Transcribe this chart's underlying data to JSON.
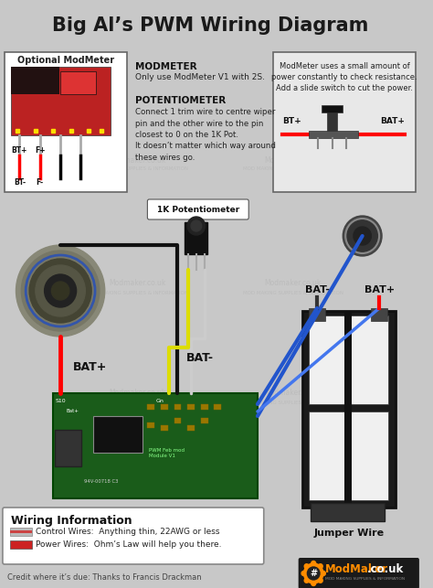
{
  "title": "Big Al’s PWM Wiring Diagram",
  "bg_color": "#c8c8c8",
  "title_color": "#1a1a1a",
  "title_fontsize": 15,
  "subtitle_credit": "Credit where it’s due: Thanks to Francis Drackman",
  "wiring_info_title": "Wiring Information",
  "wiring_info_line1": "Control Wires:  Anything thin, 22AWG or less",
  "wiring_info_line2": "Power Wires:  Ohm’s Law will help you there.",
  "control_wire_color": "#c87878",
  "power_wire_color": "#cc2222",
  "jumper_wire_label": "Jumper Wire",
  "modmeter_box_title": "Optional ModMeter",
  "modmeter_text_title": "MODMETER",
  "modmeter_text": "Only use ModMeter V1 with 2S.",
  "potentiometer_title": "POTENTIOMETER",
  "potentiometer_text": "Connect 1 trim wire to centre wiper\npin and the other wire to the pin\nclosest to 0 on the 1K Pot.\nIt doesn’t matter which way around\nthese wires go.",
  "modmeter_note": "ModMeter uses a small amount of\npower constantly to check resistance.\nAdd a slide switch to cut the power.",
  "pot_label": "1K Potentiometer",
  "bat_plus_label": "BAT+",
  "bat_minus_label": "BAT-",
  "logo_text1": "ModMaker",
  "logo_text2": ".co.uk",
  "logo_sub": "MOD MAKING SUPPLIES & INFORMATION",
  "watermark_line1": "Modmaker.co.uk",
  "watermark_line2": "MOD MAKING SUPPLIES & INFORMATION",
  "bt_plus": "BT+",
  "bt_minus": "BT-",
  "f_plus": "F+",
  "f_minus": "F-"
}
